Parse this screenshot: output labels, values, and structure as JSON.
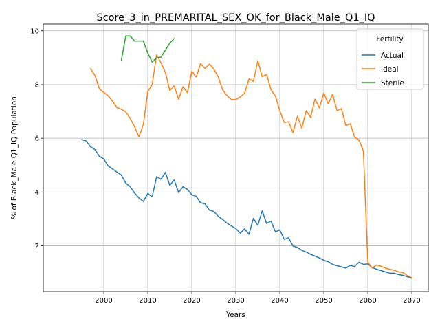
{
  "chart_data": {
    "type": "line",
    "title": "Score_3_in_PREMARITAL_SEX_OK_for_Black_Male_Q1_IQ",
    "xlabel": "Years",
    "ylabel": "% of Black_Male Q1_IQ Population",
    "xlim": [
      1986.25,
      2073.75
    ],
    "ylim": [
      0.3,
      10.25
    ],
    "xticks": [
      2000,
      2010,
      2020,
      2030,
      2040,
      2050,
      2060,
      2070
    ],
    "yticks": [
      2,
      4,
      6,
      8,
      10
    ],
    "grid": true,
    "legend": {
      "title": "Fertility",
      "position": "top-right"
    },
    "series": [
      {
        "name": "Actual",
        "color": "#1f77b4",
        "x": [
          1995,
          1996,
          1997,
          1998,
          1999,
          2000,
          2001,
          2002,
          2003,
          2004,
          2005,
          2006,
          2007,
          2008,
          2009,
          2010,
          2011,
          2012,
          2013,
          2014,
          2015,
          2016,
          2017,
          2018,
          2019,
          2020,
          2021,
          2022,
          2023,
          2024,
          2025,
          2026,
          2027,
          2028,
          2029,
          2030,
          2031,
          2032,
          2033,
          2034,
          2035,
          2036,
          2037,
          2038,
          2039,
          2040,
          2041,
          2042,
          2043,
          2044,
          2045,
          2046,
          2047,
          2048,
          2049,
          2050,
          2051,
          2052,
          2053,
          2054,
          2055,
          2056,
          2057,
          2058,
          2059,
          2060,
          2061,
          2062,
          2063,
          2064,
          2065,
          2066,
          2067,
          2068,
          2069,
          2070
        ],
        "values": [
          5.95,
          5.9,
          5.68,
          5.58,
          5.33,
          5.23,
          4.97,
          4.86,
          4.74,
          4.63,
          4.33,
          4.2,
          3.96,
          3.78,
          3.65,
          3.95,
          3.82,
          4.57,
          4.48,
          4.73,
          4.25,
          4.45,
          3.98,
          4.2,
          4.1,
          3.9,
          3.84,
          3.6,
          3.56,
          3.33,
          3.28,
          3.1,
          2.98,
          2.84,
          2.74,
          2.64,
          2.47,
          2.63,
          2.43,
          3.02,
          2.76,
          3.3,
          2.83,
          2.92,
          2.52,
          2.59,
          2.24,
          2.3,
          1.99,
          1.94,
          1.83,
          1.77,
          1.68,
          1.62,
          1.55,
          1.46,
          1.41,
          1.31,
          1.26,
          1.22,
          1.17,
          1.27,
          1.23,
          1.39,
          1.31,
          1.33,
          1.19,
          1.13,
          1.08,
          1.03,
          0.98,
          0.98,
          0.93,
          0.9,
          0.85,
          0.79
        ]
      },
      {
        "name": "Ideal",
        "color": "#ff7f0e",
        "x": [
          1997,
          1998,
          1999,
          2000,
          2001,
          2002,
          2003,
          2004,
          2005,
          2006,
          2007,
          2008,
          2009,
          2010,
          2011,
          2012,
          2013,
          2014,
          2015,
          2016,
          2017,
          2018,
          2019,
          2020,
          2021,
          2022,
          2023,
          2024,
          2025,
          2026,
          2027,
          2028,
          2029,
          2030,
          2031,
          2032,
          2033,
          2034,
          2035,
          2036,
          2037,
          2038,
          2039,
          2040,
          2041,
          2042,
          2043,
          2044,
          2045,
          2046,
          2047,
          2048,
          2049,
          2050,
          2051,
          2052,
          2053,
          2054,
          2055,
          2056,
          2057,
          2058,
          2059,
          2060,
          2061,
          2062,
          2063,
          2064,
          2065,
          2066,
          2067,
          2068,
          2069,
          2070
        ],
        "values": [
          8.59,
          8.34,
          7.84,
          7.71,
          7.58,
          7.38,
          7.14,
          7.08,
          6.98,
          6.74,
          6.43,
          6.05,
          6.52,
          7.74,
          8.0,
          9.11,
          8.81,
          8.45,
          7.78,
          7.95,
          7.45,
          7.92,
          7.7,
          8.5,
          8.28,
          8.78,
          8.6,
          8.76,
          8.58,
          8.29,
          7.81,
          7.59,
          7.44,
          7.44,
          7.54,
          7.68,
          8.21,
          8.12,
          8.89,
          8.29,
          8.38,
          7.81,
          7.58,
          7.02,
          6.59,
          6.61,
          6.21,
          6.82,
          6.38,
          7.03,
          6.78,
          7.46,
          7.13,
          7.69,
          7.28,
          7.64,
          7.03,
          7.1,
          6.48,
          6.54,
          6.04,
          5.94,
          5.52,
          1.4,
          1.17,
          1.29,
          1.24,
          1.17,
          1.13,
          1.09,
          1.03,
          1.01,
          0.89,
          0.81
        ]
      },
      {
        "name": "Sterile",
        "color": "#2ca02c",
        "x": [
          2004,
          2005,
          2006,
          2007,
          2008,
          2009,
          2010,
          2011,
          2012,
          2013,
          2014,
          2015,
          2016
        ],
        "values": [
          8.91,
          9.81,
          9.81,
          9.62,
          9.62,
          9.62,
          9.17,
          8.84,
          8.99,
          9.02,
          9.28,
          9.54,
          9.71
        ]
      }
    ]
  }
}
